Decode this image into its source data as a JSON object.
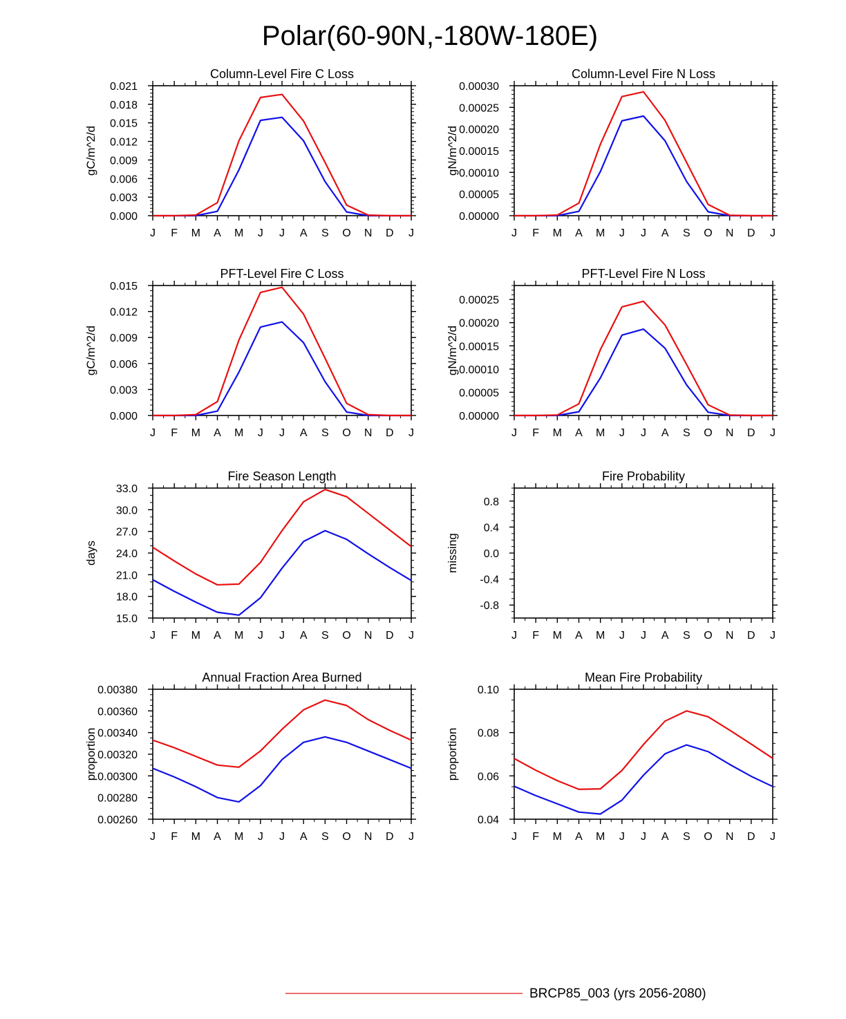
{
  "figure": {
    "title": "Polar(60-90N,-180W-180E)",
    "legend": {
      "series_name": "BRCP85_003 (yrs 2056-2080)",
      "series_color": "#e41a1c"
    }
  },
  "colors": {
    "red": "#e81010",
    "blue": "#1010e8",
    "axis": "#000000"
  },
  "chart_data": [
    {
      "type": "line",
      "title": "Column-Level Fire C Loss",
      "ylabel": "gC/m^2/d",
      "categories": [
        "J",
        "F",
        "M",
        "A",
        "M",
        "J",
        "J",
        "A",
        "S",
        "O",
        "N",
        "D",
        "J"
      ],
      "ylim": [
        0,
        0.021
      ],
      "yticks": [
        0,
        0.003,
        0.006,
        0.009,
        0.012,
        0.015,
        0.018,
        0.021
      ],
      "ytick_labels": [
        "0.000",
        "0.003",
        "0.006",
        "0.009",
        "0.012",
        "0.015",
        "0.018",
        "0.021"
      ],
      "minor_per_major": 5,
      "series": [
        {
          "name": "red",
          "values": [
            0.0,
            0.0,
            0.0001,
            0.0021,
            0.0121,
            0.0191,
            0.0196,
            0.0153,
            0.0086,
            0.0017,
            0.0001,
            0.0,
            0.0
          ]
        },
        {
          "name": "blue",
          "values": [
            0.0,
            0.0,
            0.0,
            0.0007,
            0.0074,
            0.0154,
            0.0159,
            0.0121,
            0.0055,
            0.0006,
            0.0,
            0.0,
            0.0
          ]
        }
      ]
    },
    {
      "type": "line",
      "title": "Column-Level Fire N Loss",
      "ylabel": "gN/m^2/d",
      "categories": [
        "J",
        "F",
        "M",
        "A",
        "M",
        "J",
        "J",
        "A",
        "S",
        "O",
        "N",
        "D",
        "J"
      ],
      "ylim": [
        0,
        0.0003
      ],
      "yticks": [
        0,
        5e-05,
        0.0001,
        0.00015,
        0.0002,
        0.00025,
        0.0003
      ],
      "ytick_labels": [
        "0.00000",
        "0.00005",
        "0.00010",
        "0.00015",
        "0.00020",
        "0.00025",
        "0.00030"
      ],
      "minor_per_major": 5,
      "series": [
        {
          "name": "red",
          "values": [
            0.0,
            0.0,
            1.5e-06,
            2.9e-05,
            0.000165,
            0.000275,
            0.000286,
            0.00022,
            0.000123,
            2.6e-05,
            1e-06,
            0.0,
            0.0
          ]
        },
        {
          "name": "blue",
          "values": [
            0.0,
            0.0,
            0.0,
            1e-05,
            0.000102,
            0.000219,
            0.00023,
            0.000173,
            7.9e-05,
            9e-06,
            0.0,
            0.0,
            0.0
          ]
        }
      ]
    },
    {
      "type": "line",
      "title": "PFT-Level Fire C Loss",
      "ylabel": "gC/m^2/d",
      "categories": [
        "J",
        "F",
        "M",
        "A",
        "M",
        "J",
        "J",
        "A",
        "S",
        "O",
        "N",
        "D",
        "J"
      ],
      "ylim": [
        0,
        0.015
      ],
      "yticks": [
        0,
        0.003,
        0.006,
        0.009,
        0.012,
        0.015
      ],
      "ytick_labels": [
        "0.000",
        "0.003",
        "0.006",
        "0.009",
        "0.012",
        "0.015"
      ],
      "minor_per_major": 5,
      "series": [
        {
          "name": "red",
          "values": [
            0.0,
            0.0,
            0.0001,
            0.0016,
            0.0087,
            0.0142,
            0.0148,
            0.0117,
            0.0066,
            0.0014,
            0.0001,
            0.0,
            0.0
          ]
        },
        {
          "name": "blue",
          "values": [
            0.0,
            0.0,
            0.0,
            0.0005,
            0.005,
            0.0102,
            0.0108,
            0.0084,
            0.0039,
            0.0004,
            0.0,
            0.0,
            0.0
          ]
        }
      ]
    },
    {
      "type": "line",
      "title": "PFT-Level Fire N Loss",
      "ylabel": "gN/m^2/d",
      "categories": [
        "J",
        "F",
        "M",
        "A",
        "M",
        "J",
        "J",
        "A",
        "S",
        "O",
        "N",
        "D",
        "J"
      ],
      "ylim": [
        0,
        0.00028
      ],
      "yticks": [
        0,
        5e-05,
        0.0001,
        0.00015,
        0.0002,
        0.00025
      ],
      "ytick_labels": [
        "0.00000",
        "0.00005",
        "0.00010",
        "0.00015",
        "0.00020",
        "0.00025"
      ],
      "minor_per_major": 5,
      "series": [
        {
          "name": "red",
          "values": [
            0.0,
            0.0,
            1e-06,
            2.5e-05,
            0.000142,
            0.000234,
            0.000246,
            0.000195,
            0.00011,
            2.3e-05,
            1e-06,
            0.0,
            0.0
          ]
        },
        {
          "name": "blue",
          "values": [
            0.0,
            0.0,
            0.0,
            8e-06,
            8.1e-05,
            0.000173,
            0.000186,
            0.000145,
            6.6e-05,
            7e-06,
            0.0,
            0.0,
            0.0
          ]
        }
      ]
    },
    {
      "type": "line",
      "title": "Fire Season Length",
      "ylabel": "days",
      "categories": [
        "J",
        "F",
        "M",
        "A",
        "M",
        "J",
        "J",
        "A",
        "S",
        "O",
        "N",
        "D",
        "J"
      ],
      "ylim": [
        15,
        33
      ],
      "yticks": [
        15,
        18,
        21,
        24,
        27,
        30,
        33
      ],
      "ytick_labels": [
        "15.0",
        "18.0",
        "21.0",
        "24.0",
        "27.0",
        "30.0",
        "33.0"
      ],
      "minor_per_major": 3,
      "series": [
        {
          "name": "red",
          "values": [
            24.8,
            22.9,
            21.1,
            19.6,
            19.7,
            22.7,
            27.1,
            31.1,
            32.8,
            31.8,
            29.5,
            27.2,
            24.9
          ]
        },
        {
          "name": "blue",
          "values": [
            20.3,
            18.7,
            17.2,
            15.8,
            15.4,
            17.8,
            21.9,
            25.6,
            27.1,
            25.9,
            23.9,
            22.0,
            20.2
          ]
        }
      ]
    },
    {
      "type": "line",
      "title": "Fire Probability",
      "ylabel": "missing",
      "categories": [
        "J",
        "F",
        "M",
        "A",
        "M",
        "J",
        "J",
        "A",
        "S",
        "O",
        "N",
        "D",
        "J"
      ],
      "ylim": [
        -1,
        1
      ],
      "yticks": [
        -0.8,
        -0.4,
        0.0,
        0.4,
        0.8
      ],
      "ytick_labels": [
        "-0.8",
        "-0.4",
        "0.0",
        "0.4",
        "0.8"
      ],
      "minor_per_major": 4,
      "series": []
    },
    {
      "type": "line",
      "title": "Annual Fraction Area Burned",
      "ylabel": "proportion",
      "categories": [
        "J",
        "F",
        "M",
        "A",
        "M",
        "J",
        "J",
        "A",
        "S",
        "O",
        "N",
        "D",
        "J"
      ],
      "ylim": [
        0.0026,
        0.0038
      ],
      "yticks": [
        0.0026,
        0.0028,
        0.003,
        0.0032,
        0.0034,
        0.0036,
        0.0038
      ],
      "ytick_labels": [
        "0.00260",
        "0.00280",
        "0.00300",
        "0.00320",
        "0.00340",
        "0.00360",
        "0.00380"
      ],
      "minor_per_major": 4,
      "series": [
        {
          "name": "red",
          "values": [
            0.00333,
            0.00326,
            0.00318,
            0.0031,
            0.00308,
            0.00323,
            0.00343,
            0.00361,
            0.0037,
            0.00365,
            0.00352,
            0.00342,
            0.00333
          ]
        },
        {
          "name": "blue",
          "values": [
            0.00307,
            0.00299,
            0.0029,
            0.0028,
            0.00276,
            0.00291,
            0.00315,
            0.00331,
            0.00336,
            0.00331,
            0.00323,
            0.00315,
            0.00307
          ]
        }
      ]
    },
    {
      "type": "line",
      "title": "Mean Fire Probability",
      "ylabel": "proportion",
      "categories": [
        "J",
        "F",
        "M",
        "A",
        "M",
        "J",
        "J",
        "A",
        "S",
        "O",
        "N",
        "D",
        "J"
      ],
      "ylim": [
        0.04,
        0.1
      ],
      "yticks": [
        0.04,
        0.06,
        0.08,
        0.1
      ],
      "ytick_labels": [
        "0.04",
        "0.06",
        "0.08",
        "0.10"
      ],
      "minor_per_major": 4,
      "series": [
        {
          "name": "red",
          "values": [
            0.068,
            0.0626,
            0.0578,
            0.0538,
            0.054,
            0.0625,
            0.0745,
            0.0853,
            0.09,
            0.0873,
            0.0811,
            0.0747,
            0.0681
          ]
        },
        {
          "name": "blue",
          "values": [
            0.0552,
            0.0509,
            0.0471,
            0.0433,
            0.0424,
            0.0488,
            0.0603,
            0.0702,
            0.0743,
            0.0712,
            0.0653,
            0.0598,
            0.0551
          ]
        }
      ]
    }
  ]
}
